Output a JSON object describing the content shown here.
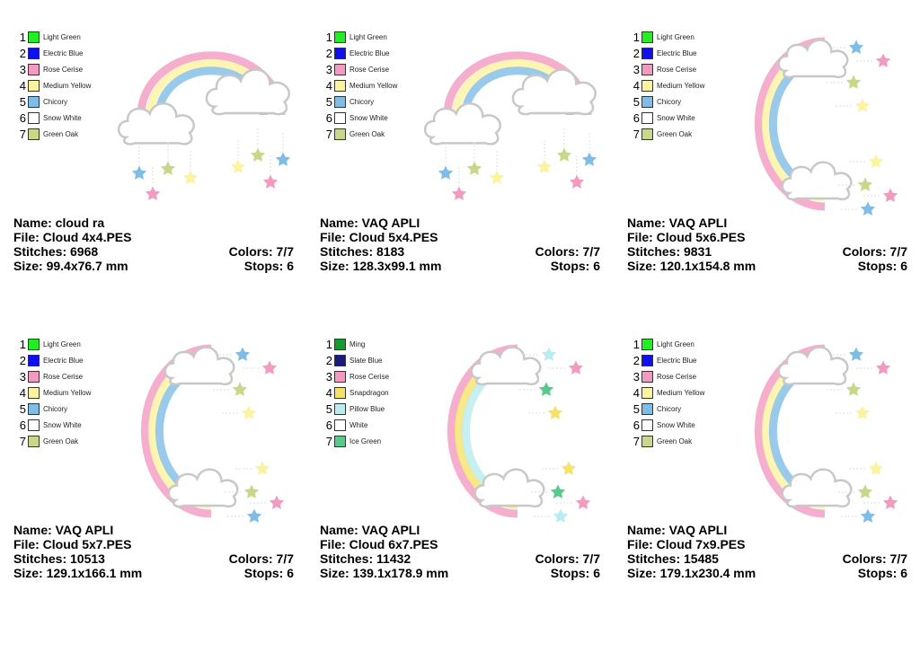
{
  "cards": [
    {
      "legend": [
        {
          "num": "1",
          "name": "Light Green",
          "color": "#22ee22"
        },
        {
          "num": "2",
          "name": "Electric Blue",
          "color": "#1010ee"
        },
        {
          "num": "3",
          "name": "Rose Cerise",
          "color": "#f29ac0"
        },
        {
          "num": "4",
          "name": "Medium Yellow",
          "color": "#fbf3a0"
        },
        {
          "num": "5",
          "name": "Chicory",
          "color": "#7fbde6"
        },
        {
          "num": "6",
          "name": "Snow White",
          "color": "#ffffff"
        },
        {
          "num": "7",
          "name": "Green Oak",
          "color": "#c8d88a"
        }
      ],
      "name": "Name: cloud ra",
      "file": "File: Cloud 4x4.PES",
      "stitches": "Stitches: 6968",
      "colors": "Colors: 7/7",
      "size": "Size: 99.4x76.7 mm",
      "stops": "Stops: 6"
    },
    {
      "legend": [
        {
          "num": "1",
          "name": "Light Green",
          "color": "#22ee22"
        },
        {
          "num": "2",
          "name": "Electric Blue",
          "color": "#1010ee"
        },
        {
          "num": "3",
          "name": "Rose Cerise",
          "color": "#f29ac0"
        },
        {
          "num": "4",
          "name": "Medium Yellow",
          "color": "#fbf3a0"
        },
        {
          "num": "5",
          "name": "Chicory",
          "color": "#7fbde6"
        },
        {
          "num": "6",
          "name": "Snow White",
          "color": "#ffffff"
        },
        {
          "num": "7",
          "name": "Green Oak",
          "color": "#c8d88a"
        }
      ],
      "name": "Name: VAQ APLI",
      "file": "File: Cloud 5x4.PES",
      "stitches": "Stitches: 8183",
      "colors": "Colors: 7/7",
      "size": "Size: 128.3x99.1 mm",
      "stops": "Stops: 6"
    },
    {
      "legend": [
        {
          "num": "1",
          "name": "Light Green",
          "color": "#22ee22"
        },
        {
          "num": "2",
          "name": "Electric Blue",
          "color": "#1010ee"
        },
        {
          "num": "3",
          "name": "Rose Cerise",
          "color": "#f29ac0"
        },
        {
          "num": "4",
          "name": "Medium Yellow",
          "color": "#fbf3a0"
        },
        {
          "num": "5",
          "name": "Chicory",
          "color": "#7fbde6"
        },
        {
          "num": "6",
          "name": "Snow White",
          "color": "#ffffff"
        },
        {
          "num": "7",
          "name": "Green Oak",
          "color": "#c8d88a"
        }
      ],
      "name": "Name: VAQ APLI",
      "file": "File: Cloud 5x6.PES",
      "stitches": "Stitches: 9831",
      "colors": "Colors: 7/7",
      "size": "Size: 120.1x154.8 mm",
      "stops": "Stops: 6"
    },
    {
      "legend": [
        {
          "num": "1",
          "name": "Light Green",
          "color": "#22ee22"
        },
        {
          "num": "2",
          "name": "Electric Blue",
          "color": "#1010ee"
        },
        {
          "num": "3",
          "name": "Rose Cerise",
          "color": "#f29ac0"
        },
        {
          "num": "4",
          "name": "Medium Yellow",
          "color": "#fbf3a0"
        },
        {
          "num": "5",
          "name": "Chicory",
          "color": "#7fbde6"
        },
        {
          "num": "6",
          "name": "Snow White",
          "color": "#ffffff"
        },
        {
          "num": "7",
          "name": "Green Oak",
          "color": "#c8d88a"
        }
      ],
      "name": "Name: VAQ APLI",
      "file": "File: Cloud 5x7.PES",
      "stitches": "Stitches: 10513",
      "colors": "Colors: 7/7",
      "size": "Size: 129.1x166.1 mm",
      "stops": "Stops: 6"
    },
    {
      "legend": [
        {
          "num": "1",
          "name": "Ming",
          "color": "#159a2e"
        },
        {
          "num": "2",
          "name": "Slate Blue",
          "color": "#1a1a80"
        },
        {
          "num": "3",
          "name": "Rose Cerise",
          "color": "#f29ac0"
        },
        {
          "num": "4",
          "name": "Snapdragon",
          "color": "#f5e26a"
        },
        {
          "num": "5",
          "name": "Pillow Blue",
          "color": "#b8ecf0"
        },
        {
          "num": "6",
          "name": "White",
          "color": "#ffffff"
        },
        {
          "num": "7",
          "name": "Ice Green",
          "color": "#57c98a"
        }
      ],
      "name": "Name: VAQ APLI",
      "file": "File: Cloud 6x7.PES",
      "stitches": "Stitches: 11432",
      "colors": "Colors: 7/7",
      "size": "Size: 139.1x178.9 mm",
      "stops": "Stops: 6"
    },
    {
      "legend": [
        {
          "num": "1",
          "name": "Light Green",
          "color": "#22ee22"
        },
        {
          "num": "2",
          "name": "Electric Blue",
          "color": "#1010ee"
        },
        {
          "num": "3",
          "name": "Rose Cerise",
          "color": "#f29ac0"
        },
        {
          "num": "4",
          "name": "Medium Yellow",
          "color": "#fbf3a0"
        },
        {
          "num": "5",
          "name": "Chicory",
          "color": "#7fbde6"
        },
        {
          "num": "6",
          "name": "Snow White",
          "color": "#ffffff"
        },
        {
          "num": "7",
          "name": "Green Oak",
          "color": "#c8d88a"
        }
      ],
      "name": "Name: VAQ APLI",
      "file": "File: Cloud 7x9.PES",
      "stitches": "Stitches: 15485",
      "colors": "Colors: 7/7",
      "size": "Size: 179.1x230.4 mm",
      "stops": "Stops: 6"
    }
  ]
}
